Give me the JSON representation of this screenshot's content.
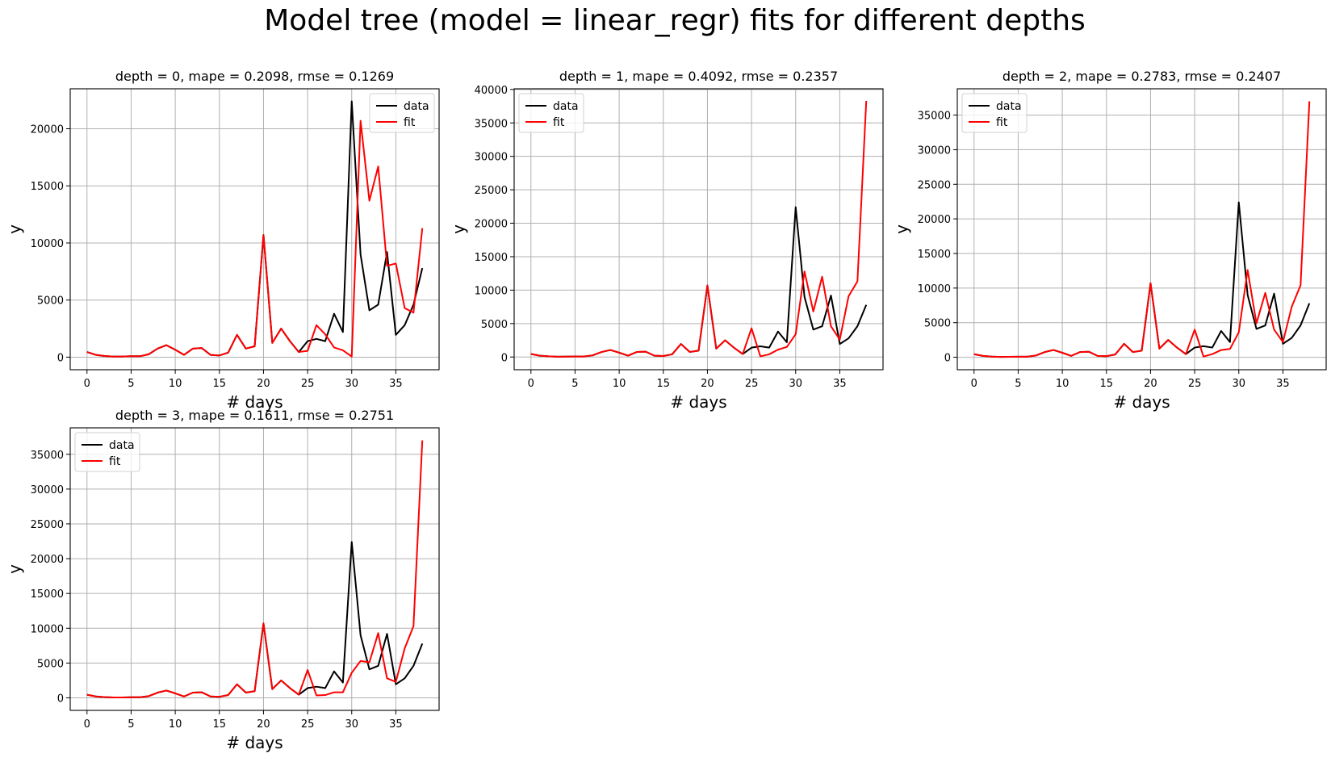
{
  "figure": {
    "title": "Model tree (model = linear_regr) fits for different depths"
  },
  "chart_data": [
    {
      "type": "line",
      "title": "depth = 0, mape = 0.2098, rmse = 0.1269",
      "xlabel": "# days",
      "ylabel": "y",
      "xlim": [
        -1.9,
        39.9
      ],
      "ylim": [
        -1100,
        23500
      ],
      "xticks": [
        0,
        5,
        10,
        15,
        20,
        25,
        30,
        35
      ],
      "yticks": [
        0,
        5000,
        10000,
        15000,
        20000
      ],
      "grid": true,
      "legend_position": "upper right",
      "x": [
        0,
        1,
        2,
        3,
        4,
        5,
        6,
        7,
        8,
        9,
        10,
        11,
        12,
        13,
        14,
        15,
        16,
        17,
        18,
        19,
        20,
        21,
        22,
        23,
        24,
        25,
        26,
        27,
        28,
        29,
        30,
        31,
        32,
        33,
        34,
        35,
        36,
        37,
        38
      ],
      "series": [
        {
          "name": "data",
          "color": "#000000",
          "values": [
            450,
            200,
            100,
            50,
            60,
            80,
            80,
            250,
            750,
            1050,
            650,
            200,
            750,
            800,
            200,
            150,
            400,
            1950,
            750,
            950,
            10700,
            1250,
            2500,
            1400,
            450,
            1400,
            1600,
            1400,
            3800,
            2200,
            22400,
            9000,
            4100,
            4600,
            9200,
            1950,
            2800,
            4600,
            7800
          ]
        },
        {
          "name": "fit",
          "color": "#ff0000",
          "values": [
            450,
            200,
            100,
            50,
            60,
            80,
            80,
            250,
            750,
            1050,
            650,
            200,
            750,
            800,
            200,
            150,
            400,
            1950,
            750,
            950,
            10700,
            1250,
            2500,
            1400,
            450,
            550,
            2800,
            2000,
            850,
            600,
            50,
            20700,
            13700,
            16700,
            8000,
            8200,
            4300,
            3900,
            11300
          ]
        }
      ]
    },
    {
      "type": "line",
      "title": "depth = 1, mape = 0.4092, rmse = 0.2357",
      "xlabel": "# days",
      "ylabel": "y",
      "xlim": [
        -1.9,
        39.9
      ],
      "ylim": [
        -1900,
        40100
      ],
      "xticks": [
        0,
        5,
        10,
        15,
        20,
        25,
        30,
        35
      ],
      "yticks": [
        0,
        5000,
        10000,
        15000,
        20000,
        25000,
        30000,
        35000,
        40000
      ],
      "grid": true,
      "legend_position": "upper left",
      "x": [
        0,
        1,
        2,
        3,
        4,
        5,
        6,
        7,
        8,
        9,
        10,
        11,
        12,
        13,
        14,
        15,
        16,
        17,
        18,
        19,
        20,
        21,
        22,
        23,
        24,
        25,
        26,
        27,
        28,
        29,
        30,
        31,
        32,
        33,
        34,
        35,
        36,
        37,
        38
      ],
      "series": [
        {
          "name": "data",
          "color": "#000000",
          "values": [
            450,
            200,
            100,
            50,
            60,
            80,
            80,
            250,
            750,
            1050,
            650,
            200,
            750,
            800,
            200,
            150,
            400,
            1950,
            750,
            950,
            10700,
            1250,
            2500,
            1400,
            450,
            1400,
            1600,
            1400,
            3800,
            2200,
            22400,
            9000,
            4100,
            4600,
            9200,
            1950,
            2800,
            4600,
            7800
          ]
        },
        {
          "name": "fit",
          "color": "#ff0000",
          "values": [
            450,
            200,
            100,
            50,
            60,
            80,
            80,
            250,
            750,
            1050,
            650,
            200,
            750,
            800,
            200,
            150,
            400,
            1950,
            750,
            950,
            10700,
            1250,
            2500,
            1400,
            450,
            4300,
            100,
            400,
            1100,
            1500,
            3400,
            12800,
            6800,
            12000,
            4600,
            2600,
            9100,
            11300,
            38300
          ]
        }
      ]
    },
    {
      "type": "line",
      "title": "depth = 2, mape = 0.2783, rmse = 0.2407",
      "xlabel": "# days",
      "ylabel": "y",
      "xlim": [
        -1.9,
        39.9
      ],
      "ylim": [
        -1800,
        38800
      ],
      "xticks": [
        0,
        5,
        10,
        15,
        20,
        25,
        30,
        35
      ],
      "yticks": [
        0,
        5000,
        10000,
        15000,
        20000,
        25000,
        30000,
        35000
      ],
      "grid": true,
      "legend_position": "upper left",
      "x": [
        0,
        1,
        2,
        3,
        4,
        5,
        6,
        7,
        8,
        9,
        10,
        11,
        12,
        13,
        14,
        15,
        16,
        17,
        18,
        19,
        20,
        21,
        22,
        23,
        24,
        25,
        26,
        27,
        28,
        29,
        30,
        31,
        32,
        33,
        34,
        35,
        36,
        37,
        38
      ],
      "series": [
        {
          "name": "data",
          "color": "#000000",
          "values": [
            450,
            200,
            100,
            50,
            60,
            80,
            80,
            250,
            750,
            1050,
            650,
            200,
            750,
            800,
            200,
            150,
            400,
            1950,
            750,
            950,
            10700,
            1250,
            2500,
            1400,
            450,
            1400,
            1600,
            1400,
            3800,
            2200,
            22400,
            9000,
            4100,
            4600,
            9200,
            1950,
            2800,
            4600,
            7800
          ]
        },
        {
          "name": "fit",
          "color": "#ff0000",
          "values": [
            450,
            200,
            100,
            50,
            60,
            80,
            80,
            250,
            750,
            1050,
            650,
            200,
            750,
            800,
            200,
            150,
            400,
            1950,
            750,
            950,
            10700,
            1250,
            2500,
            1400,
            450,
            4000,
            100,
            450,
            1050,
            1200,
            3600,
            12600,
            4900,
            9300,
            4000,
            2200,
            7300,
            10400,
            37000
          ]
        }
      ]
    },
    {
      "type": "line",
      "title": "depth = 3, mape = 0.1611, rmse = 0.2751",
      "xlabel": "# days",
      "ylabel": "y",
      "xlim": [
        -1.9,
        39.9
      ],
      "ylim": [
        -1800,
        38800
      ],
      "xticks": [
        0,
        5,
        10,
        15,
        20,
        25,
        30,
        35
      ],
      "yticks": [
        0,
        5000,
        10000,
        15000,
        20000,
        25000,
        30000,
        35000
      ],
      "grid": true,
      "legend_position": "upper left",
      "x": [
        0,
        1,
        2,
        3,
        4,
        5,
        6,
        7,
        8,
        9,
        10,
        11,
        12,
        13,
        14,
        15,
        16,
        17,
        18,
        19,
        20,
        21,
        22,
        23,
        24,
        25,
        26,
        27,
        28,
        29,
        30,
        31,
        32,
        33,
        34,
        35,
        36,
        37,
        38
      ],
      "series": [
        {
          "name": "data",
          "color": "#000000",
          "values": [
            450,
            200,
            100,
            50,
            60,
            80,
            80,
            250,
            750,
            1050,
            650,
            200,
            750,
            800,
            200,
            150,
            400,
            1950,
            750,
            950,
            10700,
            1250,
            2500,
            1400,
            450,
            1400,
            1600,
            1400,
            3800,
            2200,
            22400,
            9000,
            4100,
            4600,
            9200,
            1950,
            2800,
            4600,
            7800
          ]
        },
        {
          "name": "fit",
          "color": "#ff0000",
          "values": [
            450,
            200,
            100,
            50,
            60,
            80,
            80,
            250,
            750,
            1050,
            650,
            200,
            750,
            800,
            200,
            150,
            400,
            1950,
            750,
            950,
            10700,
            1250,
            2500,
            1400,
            450,
            4000,
            350,
            400,
            800,
            800,
            3600,
            5300,
            5100,
            9300,
            2800,
            2300,
            7100,
            10300,
            37000
          ]
        }
      ]
    }
  ]
}
